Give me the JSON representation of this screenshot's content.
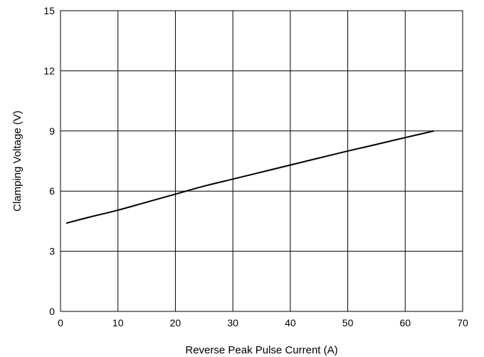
{
  "chart_data": {
    "type": "line",
    "title": "",
    "xlabel": "Reverse Peak Pulse Current (A)",
    "ylabel": "Clamping Voltage (V)",
    "xlim": [
      0,
      70
    ],
    "ylim": [
      0,
      15
    ],
    "xticks": [
      0,
      10,
      20,
      30,
      40,
      50,
      60,
      70
    ],
    "yticks": [
      0,
      3,
      6,
      9,
      12,
      15
    ],
    "xtick_labels": [
      "0",
      "10",
      "20",
      "30",
      "40",
      "50",
      "60",
      "70"
    ],
    "ytick_labels": [
      "0",
      "3",
      "6",
      "9",
      "12",
      "15"
    ],
    "grid": true,
    "legend": "none",
    "series": [
      {
        "color": "#000000",
        "x": [
          1,
          5,
          10,
          15,
          20,
          25,
          30,
          35,
          40,
          45,
          50,
          55,
          60,
          65
        ],
        "y": [
          4.4,
          4.7,
          5.05,
          5.45,
          5.85,
          6.25,
          6.6,
          6.95,
          7.3,
          7.65,
          8.0,
          8.33,
          8.67,
          9.0
        ]
      }
    ]
  }
}
